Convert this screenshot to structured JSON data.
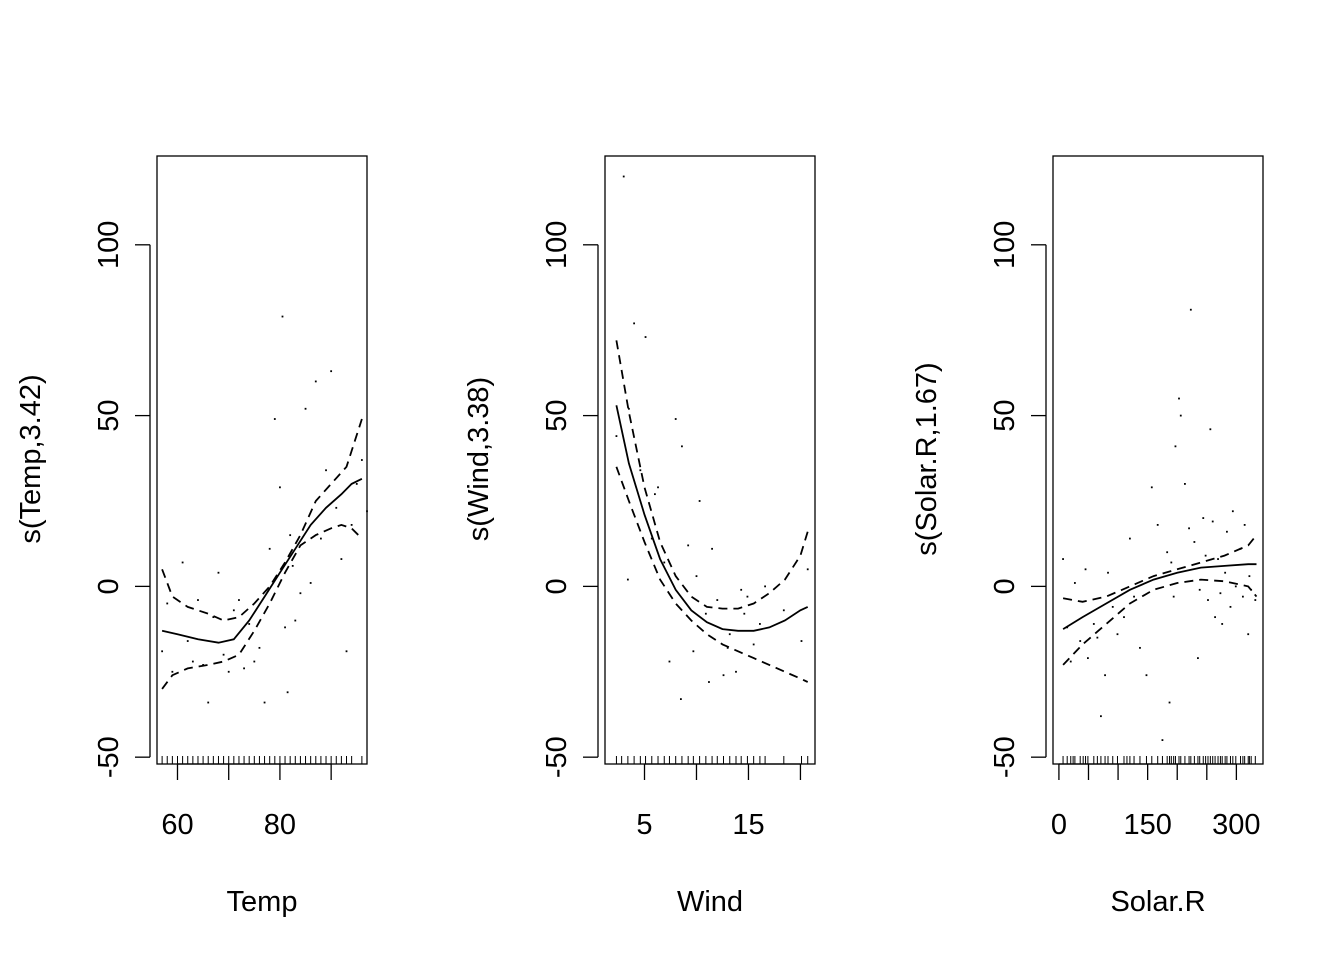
{
  "chart_data": [
    {
      "type": "line",
      "xlabel": "Temp",
      "ylabel": "s(Temp,3.42)",
      "xlim": [
        56,
        97
      ],
      "ylim": [
        -52,
        126
      ],
      "xticks": [
        60,
        80
      ],
      "xticks_minor": [
        70,
        90
      ],
      "yticks": [
        -50,
        0,
        50,
        100
      ],
      "series": [
        {
          "role": "fit",
          "x": [
            57,
            60,
            64,
            68,
            71,
            74,
            77,
            80,
            83,
            86,
            89,
            92,
            94,
            96
          ],
          "y": [
            -13,
            -14,
            -15.5,
            -16.5,
            -15.5,
            -10,
            -3,
            4,
            11,
            18,
            23,
            27,
            30,
            31.5
          ]
        },
        {
          "role": "upper",
          "x": [
            57,
            59,
            62,
            66,
            69,
            72,
            75,
            78,
            81,
            84,
            87,
            90,
            93,
            96
          ],
          "y": [
            5,
            -3,
            -6,
            -8,
            -10,
            -9,
            -5,
            0,
            7,
            15,
            25,
            30,
            35,
            49
          ]
        },
        {
          "role": "lower",
          "x": [
            57,
            59,
            62,
            66,
            69,
            72,
            75,
            78,
            81,
            84,
            87,
            90,
            92,
            94,
            96
          ],
          "y": [
            -30,
            -26,
            -24,
            -23,
            -22,
            -20,
            -13,
            -5,
            4,
            12,
            15,
            17,
            18,
            17,
            14
          ]
        }
      ],
      "residuals": {
        "x": [
          57,
          58,
          59,
          61,
          62,
          63,
          64,
          65,
          66,
          67,
          68,
          69,
          70,
          71,
          72,
          73,
          74,
          75,
          76,
          77,
          78,
          79,
          80,
          80.5,
          81,
          81.5,
          82,
          82.5,
          83,
          84,
          85,
          86,
          87,
          88,
          89,
          90,
          91,
          92,
          93,
          94,
          95,
          96,
          97
        ],
        "y": [
          -19,
          -5,
          -25,
          7,
          -16,
          -22,
          -4,
          -23,
          -34,
          -9,
          4,
          -20,
          -25,
          -7,
          -4,
          -24,
          -11,
          -22,
          -18,
          -34,
          11,
          49,
          29,
          79,
          -12,
          -31,
          15,
          6,
          -10,
          -2,
          52,
          1,
          60,
          14,
          34,
          63,
          23,
          8,
          -19,
          18,
          30,
          37,
          22
        ]
      },
      "rug": [
        57,
        58,
        59,
        60,
        61,
        62,
        63,
        64,
        65,
        66,
        67,
        68,
        69,
        70,
        71,
        72,
        73,
        74,
        75,
        76,
        77,
        78,
        79,
        80,
        81,
        82,
        83,
        84,
        85,
        86,
        87,
        88,
        89,
        90,
        91,
        92,
        93,
        94,
        96
      ]
    },
    {
      "type": "line",
      "xlabel": "Wind",
      "ylabel": "s(Wind,3.38)",
      "xlim": [
        1.2,
        21.4
      ],
      "ylim": [
        -52,
        126
      ],
      "xticks": [
        5,
        15
      ],
      "xticks_minor": [
        10,
        20
      ],
      "yticks": [
        -50,
        0,
        50,
        100
      ],
      "series": [
        {
          "role": "fit",
          "x": [
            2.3,
            3.5,
            5,
            6.5,
            8,
            9.5,
            11,
            12.5,
            14,
            15.5,
            17,
            18.5,
            20,
            20.7
          ],
          "y": [
            53,
            36,
            21,
            8,
            -1,
            -7,
            -10.5,
            -12.5,
            -13,
            -13,
            -12,
            -10,
            -7,
            -6
          ]
        },
        {
          "role": "upper",
          "x": [
            2.3,
            3.5,
            5,
            6.5,
            8,
            9.5,
            11,
            12.5,
            14,
            15.5,
            17,
            18.5,
            20,
            20.7
          ],
          "y": [
            72,
            51,
            29,
            13,
            3,
            -3,
            -6,
            -6.5,
            -6.5,
            -5,
            -2,
            2,
            9,
            16
          ]
        },
        {
          "role": "lower",
          "x": [
            2.3,
            3.5,
            5,
            6.5,
            8,
            9.5,
            11,
            12.5,
            14,
            15.5,
            17,
            18.5,
            20,
            20.7
          ],
          "y": [
            35,
            25,
            13,
            2,
            -5,
            -10,
            -14,
            -17,
            -19,
            -21,
            -23,
            -25,
            -27,
            -28
          ]
        }
      ],
      "residuals": {
        "x": [
          2.3,
          3,
          3.5,
          4,
          4.6,
          5.1,
          5.7,
          6.3,
          6.9,
          7.4,
          8,
          8.6,
          9.2,
          9.7,
          10.3,
          10.9,
          11.5,
          12,
          12.6,
          13.2,
          13.8,
          14.3,
          14.9,
          15.5,
          16.1,
          16.6,
          18.4,
          20.1,
          20.7,
          3.4,
          6,
          8.5,
          10,
          11.2,
          13,
          14.6
        ],
        "y": [
          44,
          120,
          52,
          77,
          34,
          73,
          14,
          29,
          7,
          -22,
          49,
          41,
          12,
          -19,
          25,
          -8,
          11,
          -4,
          -26,
          -14,
          -25,
          -1,
          -3,
          -17,
          -11,
          0,
          -7,
          -16,
          5,
          2,
          27,
          -33,
          3,
          -28,
          -18,
          -8
        ]
      },
      "rug": [
        2.3,
        2.8,
        3.4,
        4,
        4.6,
        5.1,
        5.7,
        6.3,
        6.9,
        7.4,
        8,
        8.6,
        9.2,
        9.7,
        10.3,
        10.9,
        11.5,
        12,
        12.6,
        13.2,
        13.8,
        14.3,
        14.9,
        15.5,
        16.1,
        16.6,
        18.4,
        20.1,
        20.7
      ]
    },
    {
      "type": "line",
      "xlabel": "Solar.R",
      "ylabel": "s(Solar.R,1.67)",
      "xlim": [
        -10,
        345
      ],
      "ylim": [
        -52,
        126
      ],
      "xticks": [
        0,
        150,
        300
      ],
      "xticks_minor": [
        50,
        100,
        200,
        250
      ],
      "yticks": [
        -50,
        0,
        50,
        100
      ],
      "series": [
        {
          "role": "fit",
          "x": [
            7,
            40,
            80,
            120,
            160,
            200,
            240,
            280,
            320,
            334
          ],
          "y": [
            -12.5,
            -9,
            -5,
            -1,
            2,
            4,
            5.5,
            6,
            6.5,
            6.5
          ]
        },
        {
          "role": "upper",
          "x": [
            7,
            40,
            80,
            120,
            160,
            200,
            240,
            280,
            320,
            334
          ],
          "y": [
            -3.5,
            -4.5,
            -3,
            0,
            3,
            5,
            7,
            9,
            12,
            15
          ]
        },
        {
          "role": "lower",
          "x": [
            7,
            40,
            80,
            120,
            160,
            200,
            240,
            280,
            320,
            334
          ],
          "y": [
            -23,
            -17,
            -11,
            -5,
            -1,
            1,
            2,
            1.5,
            0,
            -3
          ]
        }
      ],
      "residuals": {
        "x": [
          7,
          14,
          20,
          27,
          36,
          45,
          49,
          59,
          65,
          71,
          78,
          83,
          91,
          99,
          110,
          120,
          127,
          137,
          148,
          157,
          167,
          175,
          183,
          187,
          190,
          194,
          197,
          203,
          206,
          213,
          220,
          223,
          229,
          235,
          238,
          244,
          248,
          252,
          256,
          260,
          264,
          269,
          273,
          276,
          281,
          284,
          290,
          294,
          299,
          307,
          311,
          314,
          320,
          322,
          325,
          332
        ],
        "y": [
          8,
          -12,
          -22,
          1,
          -16,
          5,
          -21,
          -11,
          -15,
          -38,
          -26,
          4,
          -6,
          -14,
          -9,
          14,
          -3,
          -18,
          -26,
          29,
          18,
          -45,
          10,
          -34,
          7,
          -3,
          41,
          55,
          50,
          30,
          17,
          81,
          13,
          -21,
          -1,
          20,
          9,
          -4,
          46,
          19,
          -9,
          8,
          -2,
          -11,
          4,
          16,
          -6,
          22,
          0,
          11,
          -3,
          18,
          -14,
          3,
          -1,
          -4
        ]
      },
      "rug": [
        7,
        14,
        20,
        24,
        27,
        36,
        41,
        45,
        49,
        59,
        65,
        71,
        78,
        83,
        91,
        99,
        110,
        115,
        120,
        127,
        137,
        148,
        157,
        167,
        175,
        183,
        187,
        190,
        194,
        197,
        203,
        206,
        213,
        220,
        223,
        229,
        235,
        238,
        244,
        248,
        252,
        256,
        260,
        264,
        269,
        273,
        276,
        281,
        284,
        290,
        294,
        299,
        307,
        311,
        314,
        320,
        322,
        325,
        332
      ]
    }
  ]
}
